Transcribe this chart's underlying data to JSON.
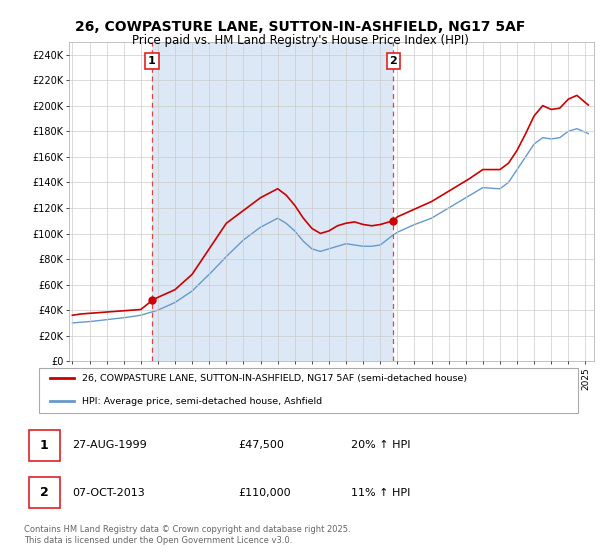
{
  "title": "26, COWPASTURE LANE, SUTTON-IN-ASHFIELD, NG17 5AF",
  "subtitle": "Price paid vs. HM Land Registry's House Price Index (HPI)",
  "title_fontsize": 10,
  "subtitle_fontsize": 8.5,
  "background_color": "#ffffff",
  "grid_color": "#cccccc",
  "chart_bg_color": "#f0f4f8",
  "shade_color": "#dce8f5",
  "sale1": {
    "x": 1999.65,
    "price": 47500,
    "label": "1"
  },
  "sale2": {
    "x": 2013.77,
    "price": 110000,
    "label": "2"
  },
  "legend_line1": "26, COWPASTURE LANE, SUTTON-IN-ASHFIELD, NG17 5AF (semi-detached house)",
  "legend_line2": "HPI: Average price, semi-detached house, Ashfield",
  "table_entries": [
    {
      "num": "1",
      "date": "27-AUG-1999",
      "price": "£47,500",
      "change": "20% ↑ HPI"
    },
    {
      "num": "2",
      "date": "07-OCT-2013",
      "price": "£110,000",
      "change": "11% ↑ HPI"
    }
  ],
  "footer": "Contains HM Land Registry data © Crown copyright and database right 2025.\nThis data is licensed under the Open Government Licence v3.0.",
  "ylim": [
    0,
    250000
  ],
  "yticks": [
    0,
    20000,
    40000,
    60000,
    80000,
    100000,
    120000,
    140000,
    160000,
    180000,
    200000,
    220000,
    240000
  ],
  "ytick_labels": [
    "£0",
    "£20K",
    "£40K",
    "£60K",
    "£80K",
    "£100K",
    "£120K",
    "£140K",
    "£160K",
    "£180K",
    "£200K",
    "£220K",
    "£240K"
  ],
  "xlim_start": 1994.8,
  "xlim_end": 2025.5,
  "xticks": [
    1995,
    1996,
    1997,
    1998,
    1999,
    2000,
    2001,
    2002,
    2003,
    2004,
    2005,
    2006,
    2007,
    2008,
    2009,
    2010,
    2011,
    2012,
    2013,
    2014,
    2015,
    2016,
    2017,
    2018,
    2019,
    2020,
    2021,
    2022,
    2023,
    2024,
    2025
  ],
  "red_line_color": "#cc0000",
  "blue_line_color": "#6699cc",
  "sale_line_color": "#dd4444",
  "label_box_color": "#dd2222"
}
